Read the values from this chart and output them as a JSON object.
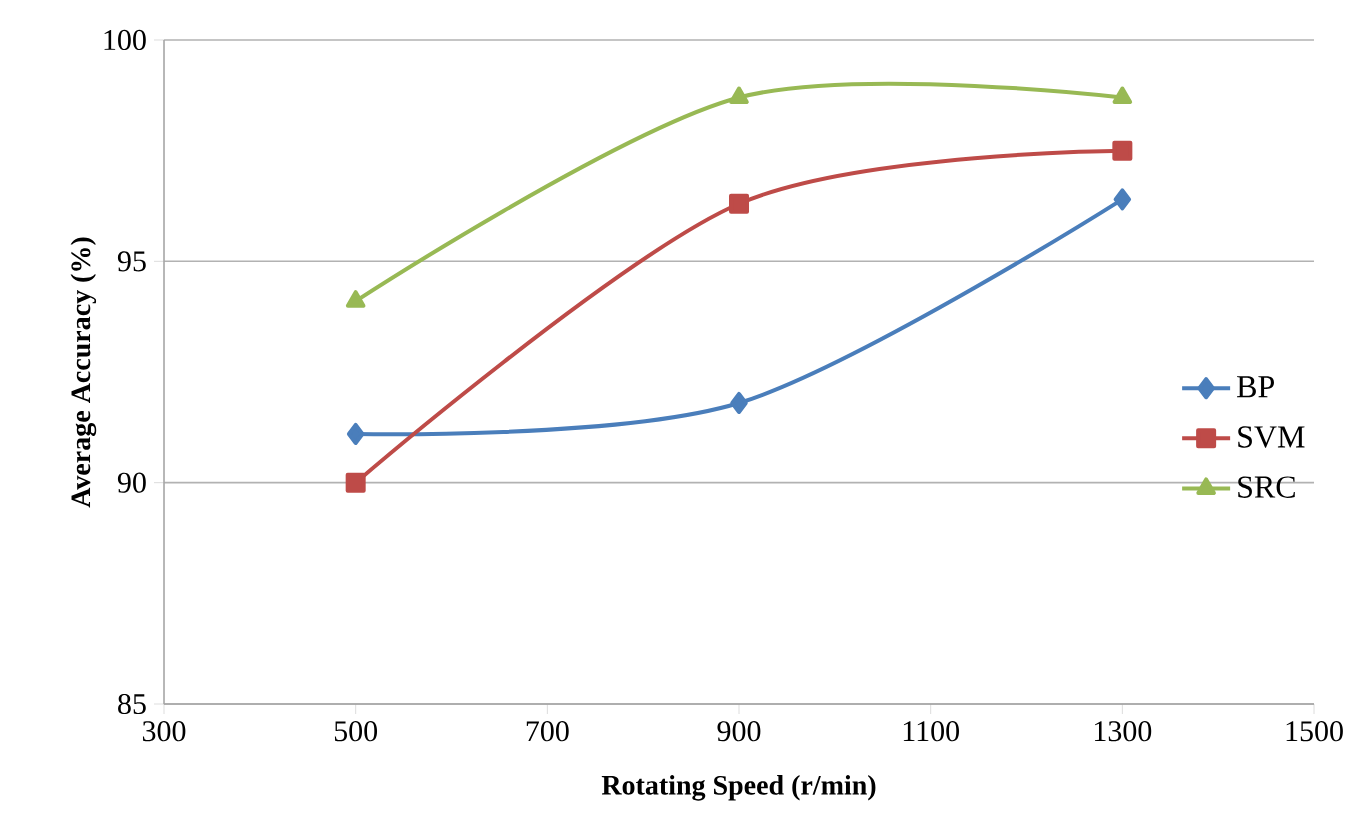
{
  "chart_data": {
    "type": "line",
    "xlabel": "Rotating Speed  (r/min)",
    "ylabel": "Average Accuracy (%)",
    "x": [
      500,
      900,
      1300
    ],
    "series": [
      {
        "name": "BP",
        "color": "#4a7ebb",
        "values": [
          91.1,
          91.8,
          96.4
        ],
        "marker": "diamond"
      },
      {
        "name": "SVM",
        "color": "#be4b48",
        "values": [
          90.0,
          96.3,
          97.5
        ],
        "marker": "square"
      },
      {
        "name": "SRC",
        "color": "#98b954",
        "values": [
          94.1,
          98.7,
          98.7
        ],
        "marker": "triangle"
      }
    ],
    "xlim": [
      300,
      1500
    ],
    "xticks": [
      300,
      500,
      700,
      900,
      1100,
      1300,
      1500
    ],
    "ylim": [
      85,
      100
    ],
    "yticks": [
      85,
      90,
      95,
      100
    ],
    "grid": "y",
    "legend": "right",
    "line_style": "solid"
  }
}
